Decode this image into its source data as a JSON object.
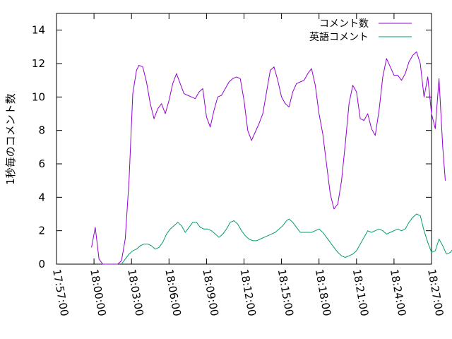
{
  "chart_data": {
    "type": "line",
    "title": "",
    "xlabel": "",
    "ylabel": "1秒毎のコメント数",
    "ylim": [
      0,
      15
    ],
    "yticks": [
      0,
      2,
      4,
      6,
      8,
      10,
      12,
      14
    ],
    "x_tick_labels": [
      "17:57:00",
      "18:00:00",
      "18:03:00",
      "18:06:00",
      "18:09:00",
      "18:12:00",
      "18:15:00",
      "18:18:00",
      "18:21:00",
      "18:24:00",
      "18:27:00"
    ],
    "xlim_minutes": [
      0,
      30
    ],
    "grid": false,
    "legend_position": "top-right",
    "series": [
      {
        "name": "コメント数",
        "color": "#9400d3",
        "points": [
          [
            2.8,
            1.0
          ],
          [
            3.1,
            2.2
          ],
          [
            3.4,
            0.3
          ],
          [
            3.7,
            0.0
          ],
          [
            4.0,
            0.0
          ],
          [
            4.3,
            0.0
          ],
          [
            4.6,
            0.0
          ],
          [
            4.9,
            0.0
          ],
          [
            5.2,
            0.2
          ],
          [
            5.5,
            1.5
          ],
          [
            5.8,
            5.0
          ],
          [
            6.1,
            10.2
          ],
          [
            6.4,
            11.6
          ],
          [
            6.6,
            11.9
          ],
          [
            6.9,
            11.8
          ],
          [
            7.2,
            10.9
          ],
          [
            7.5,
            9.6
          ],
          [
            7.8,
            8.7
          ],
          [
            8.1,
            9.3
          ],
          [
            8.4,
            9.6
          ],
          [
            8.7,
            9.0
          ],
          [
            9.0,
            9.8
          ],
          [
            9.3,
            10.8
          ],
          [
            9.6,
            11.4
          ],
          [
            9.9,
            10.8
          ],
          [
            10.2,
            10.2
          ],
          [
            10.5,
            10.1
          ],
          [
            10.8,
            10.0
          ],
          [
            11.1,
            9.9
          ],
          [
            11.4,
            10.3
          ],
          [
            11.7,
            10.5
          ],
          [
            12.0,
            8.8
          ],
          [
            12.3,
            8.2
          ],
          [
            12.6,
            9.2
          ],
          [
            12.9,
            10.0
          ],
          [
            13.2,
            10.1
          ],
          [
            13.5,
            10.5
          ],
          [
            13.8,
            10.9
          ],
          [
            14.1,
            11.1
          ],
          [
            14.4,
            11.2
          ],
          [
            14.7,
            11.1
          ],
          [
            15.0,
            9.8
          ],
          [
            15.3,
            8.0
          ],
          [
            15.6,
            7.4
          ],
          [
            15.9,
            7.9
          ],
          [
            16.2,
            8.4
          ],
          [
            16.5,
            9.0
          ],
          [
            16.8,
            10.3
          ],
          [
            17.1,
            11.6
          ],
          [
            17.4,
            11.8
          ],
          [
            17.7,
            11.0
          ],
          [
            18.0,
            10.0
          ],
          [
            18.3,
            9.6
          ],
          [
            18.6,
            9.4
          ],
          [
            18.9,
            10.3
          ],
          [
            19.2,
            10.8
          ],
          [
            19.5,
            10.9
          ],
          [
            19.8,
            11.0
          ],
          [
            20.1,
            11.4
          ],
          [
            20.4,
            11.7
          ],
          [
            20.7,
            10.7
          ],
          [
            21.0,
            9.0
          ],
          [
            21.3,
            7.8
          ],
          [
            21.6,
            6.0
          ],
          [
            21.9,
            4.2
          ],
          [
            22.2,
            3.3
          ],
          [
            22.5,
            3.6
          ],
          [
            22.8,
            5.0
          ],
          [
            23.1,
            7.2
          ],
          [
            23.4,
            9.6
          ],
          [
            23.7,
            10.7
          ],
          [
            24.0,
            10.3
          ],
          [
            24.3,
            8.7
          ],
          [
            24.6,
            8.6
          ],
          [
            24.9,
            9.0
          ],
          [
            25.2,
            8.1
          ],
          [
            25.5,
            7.7
          ],
          [
            25.8,
            9.2
          ],
          [
            26.1,
            11.2
          ],
          [
            26.4,
            12.3
          ],
          [
            26.7,
            11.8
          ],
          [
            27.0,
            11.3
          ],
          [
            27.3,
            11.3
          ],
          [
            27.6,
            11.0
          ],
          [
            27.9,
            11.4
          ],
          [
            28.2,
            12.1
          ],
          [
            28.5,
            12.5
          ],
          [
            28.8,
            12.7
          ],
          [
            29.1,
            12.0
          ],
          [
            29.4,
            10.0
          ],
          [
            29.7,
            11.2
          ],
          [
            30.0,
            9.0
          ],
          [
            30.3,
            8.1
          ],
          [
            30.6,
            11.1
          ],
          [
            30.9,
            7.0
          ],
          [
            31.1,
            5.0
          ]
        ]
      },
      {
        "name": "英語コメント",
        "color": "#009e73",
        "points": [
          [
            5.2,
            0.0
          ],
          [
            5.5,
            0.3
          ],
          [
            5.8,
            0.6
          ],
          [
            6.1,
            0.8
          ],
          [
            6.4,
            0.9
          ],
          [
            6.7,
            1.1
          ],
          [
            7.0,
            1.2
          ],
          [
            7.3,
            1.2
          ],
          [
            7.6,
            1.1
          ],
          [
            7.9,
            0.9
          ],
          [
            8.2,
            1.0
          ],
          [
            8.5,
            1.3
          ],
          [
            8.8,
            1.8
          ],
          [
            9.1,
            2.1
          ],
          [
            9.4,
            2.3
          ],
          [
            9.7,
            2.5
          ],
          [
            10.0,
            2.3
          ],
          [
            10.3,
            1.9
          ],
          [
            10.6,
            2.2
          ],
          [
            10.9,
            2.5
          ],
          [
            11.2,
            2.5
          ],
          [
            11.5,
            2.2
          ],
          [
            11.8,
            2.1
          ],
          [
            12.1,
            2.1
          ],
          [
            12.4,
            2.0
          ],
          [
            12.7,
            1.8
          ],
          [
            13.0,
            1.6
          ],
          [
            13.3,
            1.8
          ],
          [
            13.6,
            2.1
          ],
          [
            13.9,
            2.5
          ],
          [
            14.2,
            2.6
          ],
          [
            14.5,
            2.4
          ],
          [
            14.8,
            2.0
          ],
          [
            15.1,
            1.7
          ],
          [
            15.4,
            1.5
          ],
          [
            15.7,
            1.4
          ],
          [
            16.0,
            1.4
          ],
          [
            16.3,
            1.5
          ],
          [
            16.6,
            1.6
          ],
          [
            16.9,
            1.7
          ],
          [
            17.2,
            1.8
          ],
          [
            17.5,
            1.9
          ],
          [
            17.8,
            2.1
          ],
          [
            18.1,
            2.3
          ],
          [
            18.4,
            2.6
          ],
          [
            18.6,
            2.7
          ],
          [
            18.9,
            2.5
          ],
          [
            19.2,
            2.2
          ],
          [
            19.5,
            1.9
          ],
          [
            19.8,
            1.9
          ],
          [
            20.1,
            1.9
          ],
          [
            20.4,
            1.9
          ],
          [
            20.7,
            2.0
          ],
          [
            21.0,
            2.1
          ],
          [
            21.3,
            1.9
          ],
          [
            21.6,
            1.6
          ],
          [
            21.9,
            1.3
          ],
          [
            22.2,
            1.0
          ],
          [
            22.5,
            0.7
          ],
          [
            22.8,
            0.5
          ],
          [
            23.1,
            0.4
          ],
          [
            23.4,
            0.5
          ],
          [
            23.7,
            0.6
          ],
          [
            24.0,
            0.8
          ],
          [
            24.3,
            1.2
          ],
          [
            24.6,
            1.6
          ],
          [
            24.9,
            2.0
          ],
          [
            25.2,
            1.9
          ],
          [
            25.5,
            2.0
          ],
          [
            25.8,
            2.1
          ],
          [
            26.1,
            2.0
          ],
          [
            26.4,
            1.8
          ],
          [
            26.7,
            1.9
          ],
          [
            27.0,
            2.0
          ],
          [
            27.3,
            2.1
          ],
          [
            27.6,
            2.0
          ],
          [
            27.9,
            2.1
          ],
          [
            28.2,
            2.5
          ],
          [
            28.5,
            2.8
          ],
          [
            28.8,
            3.0
          ],
          [
            29.1,
            2.9
          ],
          [
            29.4,
            2.0
          ],
          [
            29.7,
            1.3
          ],
          [
            30.0,
            0.7
          ],
          [
            30.3,
            0.8
          ],
          [
            30.6,
            1.5
          ],
          [
            30.9,
            1.1
          ],
          [
            31.2,
            0.6
          ],
          [
            31.5,
            0.7
          ],
          [
            31.8,
            1.0
          ],
          [
            32.0,
            0.5
          ],
          [
            32.2,
            0.0
          ]
        ]
      }
    ]
  }
}
